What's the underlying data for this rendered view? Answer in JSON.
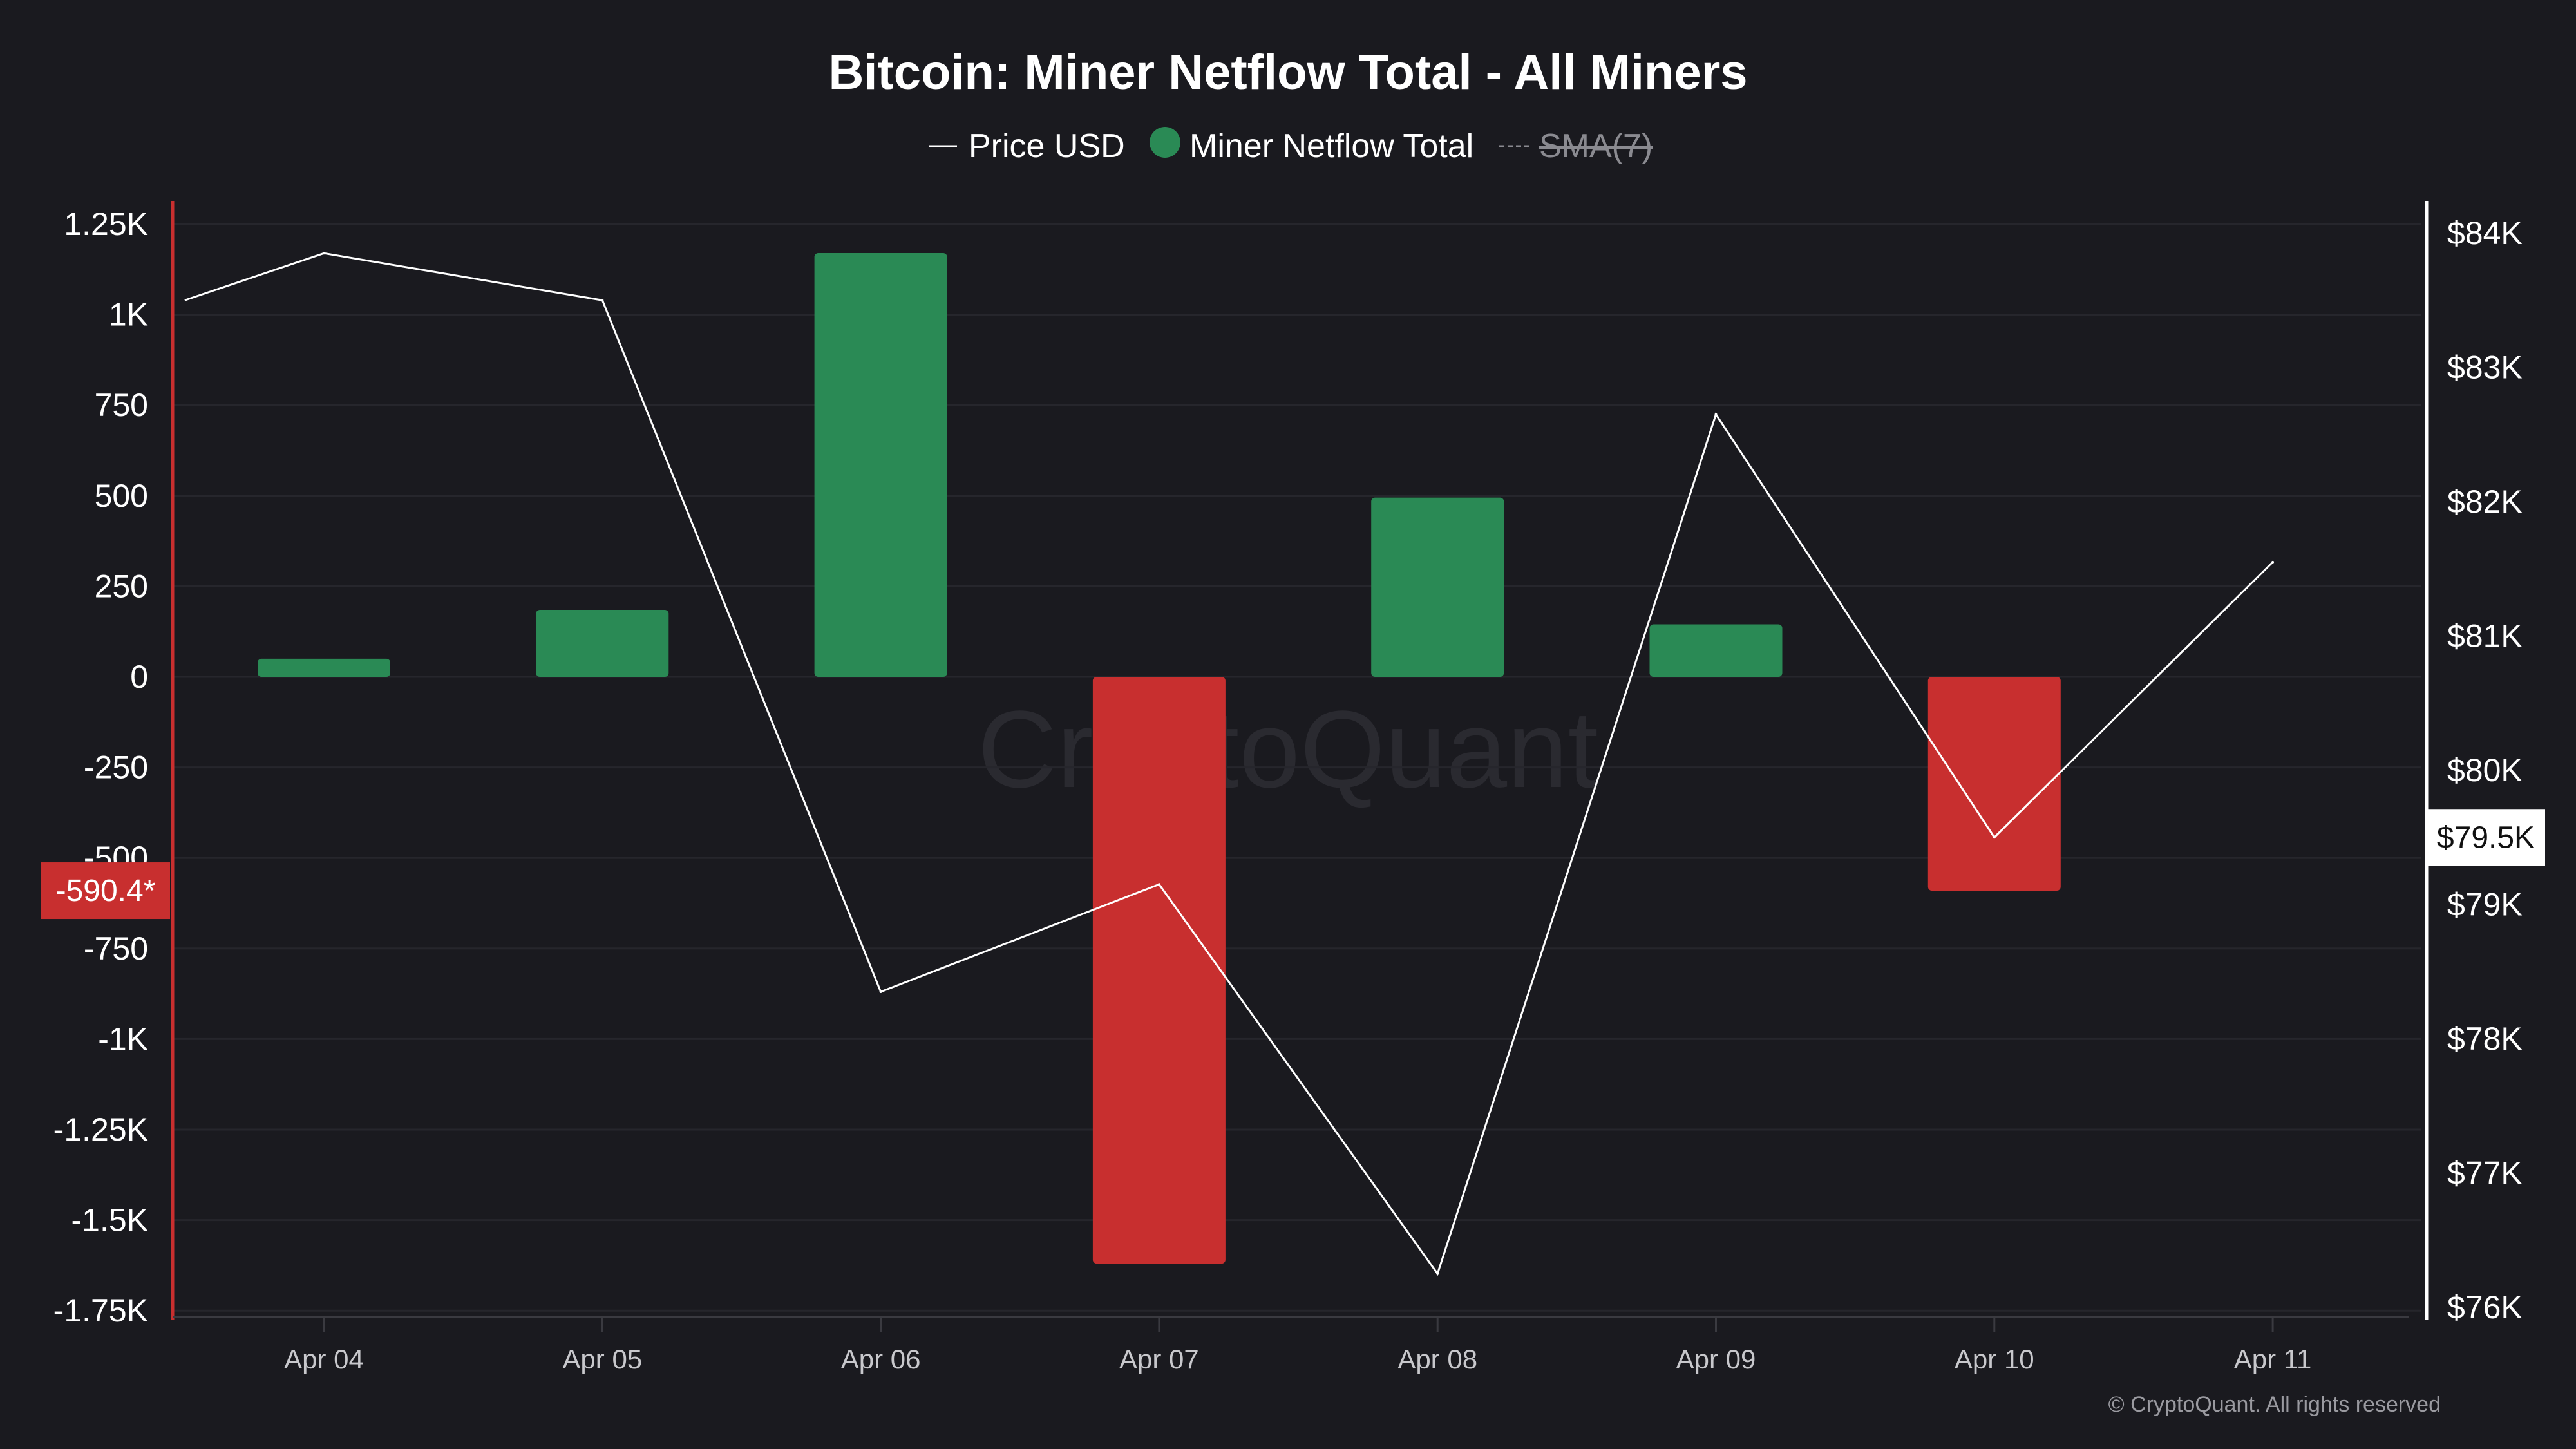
{
  "chart_data": {
    "type": "bar",
    "title": "Bitcoin: Miner Netflow Total - All Miners",
    "legend": [
      {
        "label": "Price USD",
        "marker": "line",
        "color": "#ffffff",
        "active": true
      },
      {
        "label": "Miner Netflow Total",
        "marker": "dot",
        "color": "#2a8a55",
        "active": true
      },
      {
        "label": "SMA(7)",
        "marker": "dashed-line",
        "color": "#8a8a90",
        "active": false
      }
    ],
    "legend_placement": "top-center",
    "categories": [
      "Apr 04",
      "Apr 05",
      "Apr 06",
      "Apr 07",
      "Apr 08",
      "Apr 09",
      "Apr 10",
      "Apr 11"
    ],
    "series": [
      {
        "name": "Miner Netflow Total",
        "type": "bar",
        "axis": "left",
        "values": [
          50,
          185,
          1170,
          -1620,
          495,
          145,
          -590.4,
          null
        ],
        "positive_color": "#2a8a55",
        "negative_color": "#c82f2f"
      },
      {
        "name": "Price USD",
        "type": "line",
        "axis": "right",
        "x": [
          0,
          1,
          2,
          3,
          4,
          5,
          6,
          7
        ],
        "x_offset_note": "",
        "values": [
          83850,
          83500,
          78350,
          79150,
          76250,
          82650,
          79500,
          81550
        ],
        "color": "#ffffff"
      }
    ],
    "price_start": 83500,
    "price_start_pos": -0.5,
    "left_axis": {
      "ylim": [
        -1800,
        1250
      ],
      "ticks": [
        1250,
        1000,
        750,
        500,
        250,
        0,
        -250,
        -500,
        -750,
        -1000,
        -1250,
        -1500,
        -1750
      ],
      "tick_labels": [
        "1.25K",
        "1K",
        "750",
        "500",
        "250",
        "0",
        "-250",
        "-500",
        "-750",
        "-1K",
        "-1.25K",
        "-1.5K",
        "-1.75K"
      ],
      "color": "#c82f2f"
    },
    "right_axis": {
      "ylim": [
        76000,
        84000
      ],
      "ticks": [
        84000,
        83000,
        82000,
        81000,
        80000,
        79000,
        78000,
        77000,
        76000
      ],
      "tick_labels": [
        "$84K",
        "$83K",
        "$82K",
        "$81K",
        "$80K",
        "$79K",
        "$78K",
        "$77K",
        "$76K"
      ],
      "color": "#ffffff"
    },
    "current_value_badges": {
      "netflow": {
        "label": "-590.4*",
        "value": -590.4,
        "color": "#c82f2f"
      },
      "price": {
        "label": "$79.5K",
        "value": 79500,
        "color": "#ffffff"
      }
    },
    "grid": true
  },
  "watermark": "CryptoQuant",
  "copyright": "© CryptoQuant. All rights reserved"
}
